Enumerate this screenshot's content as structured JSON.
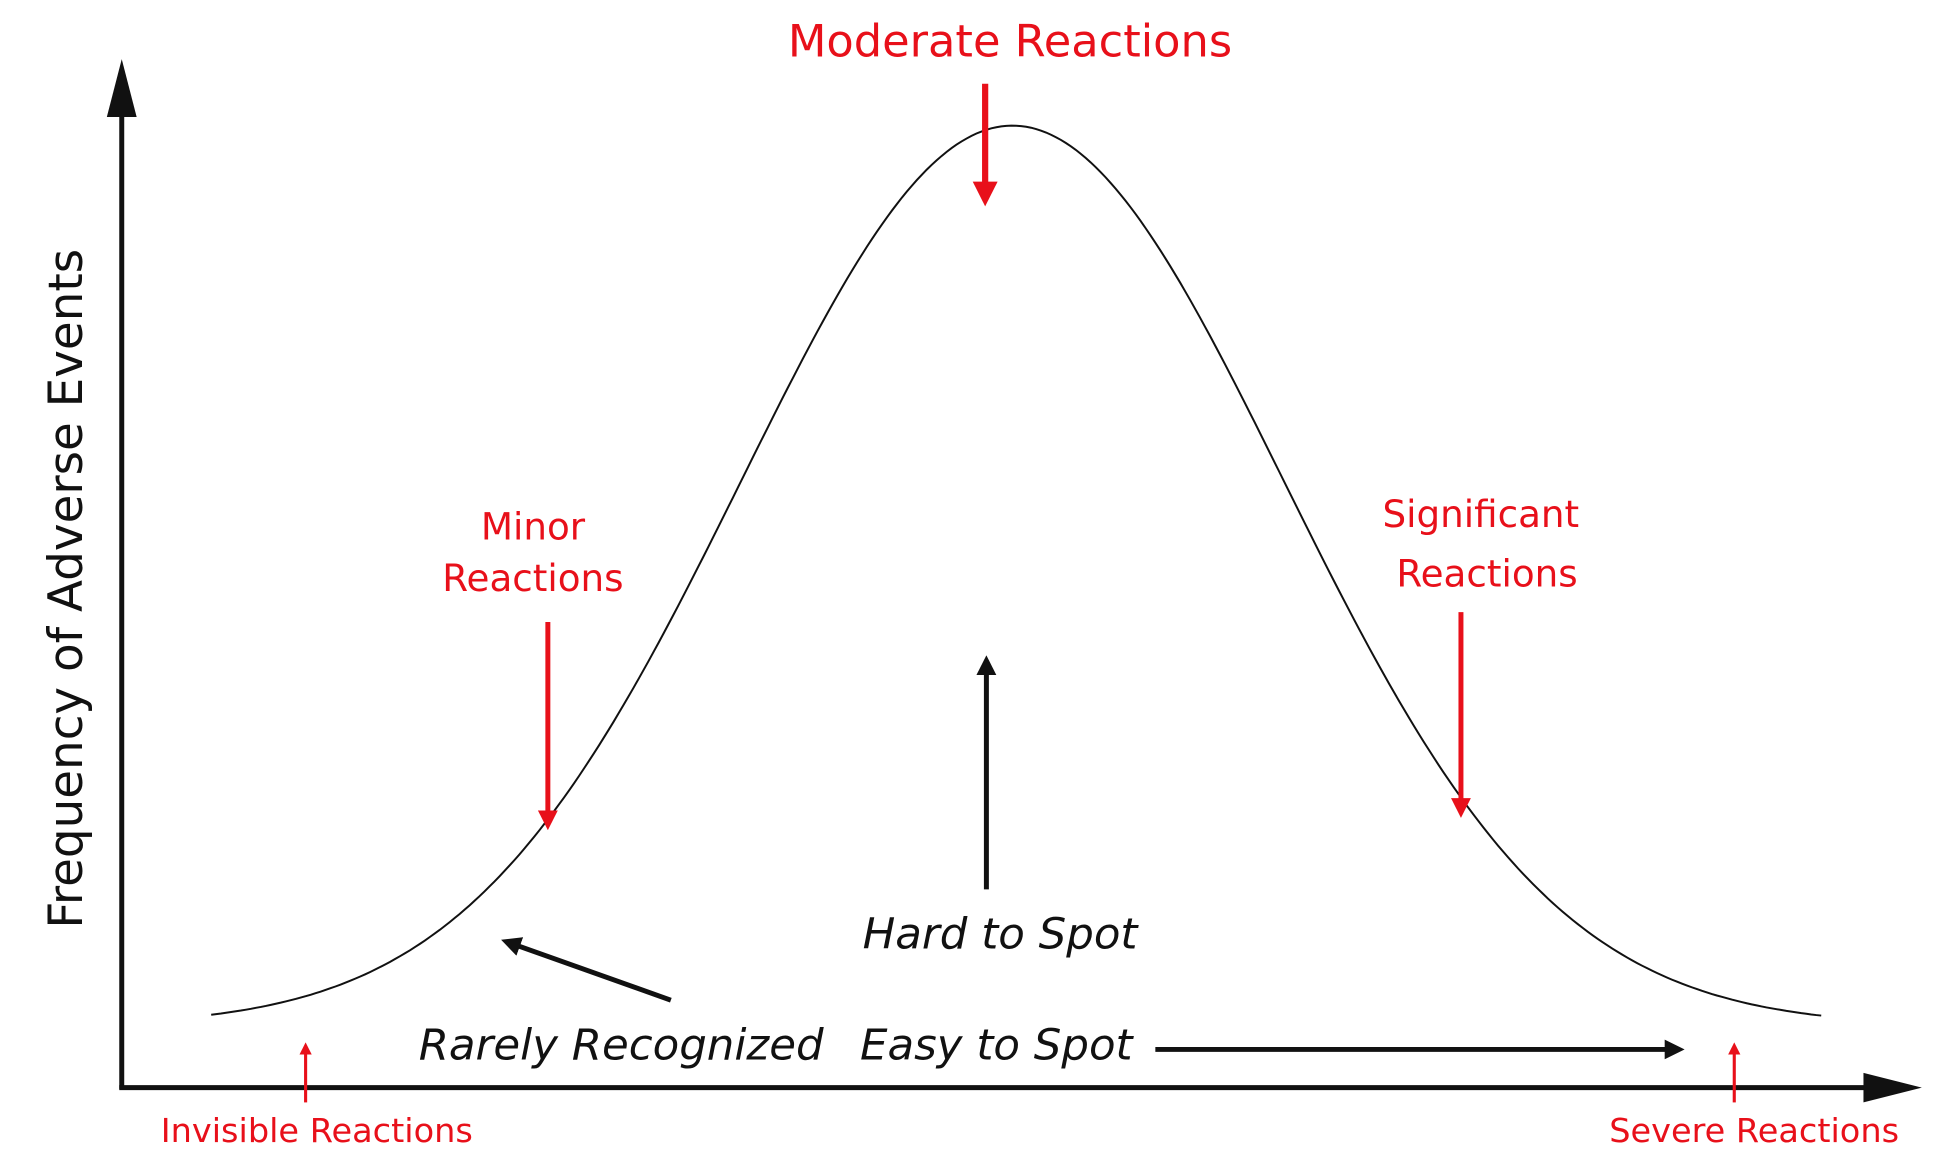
{
  "y_axis_label": "Frequency of Adverse Events",
  "labels": {
    "moderate": "Moderate Reactions",
    "minor": [
      "Minor",
      "Reactions"
    ],
    "significant": [
      "Significant",
      "Reactions"
    ],
    "invisible": "Invisible Reactions",
    "severe": "Severe Reactions",
    "hard_to_spot": "Hard to Spot",
    "rarely_recognized": "Rarely Recognized",
    "easy_to_spot": "Easy to Spot"
  }
}
